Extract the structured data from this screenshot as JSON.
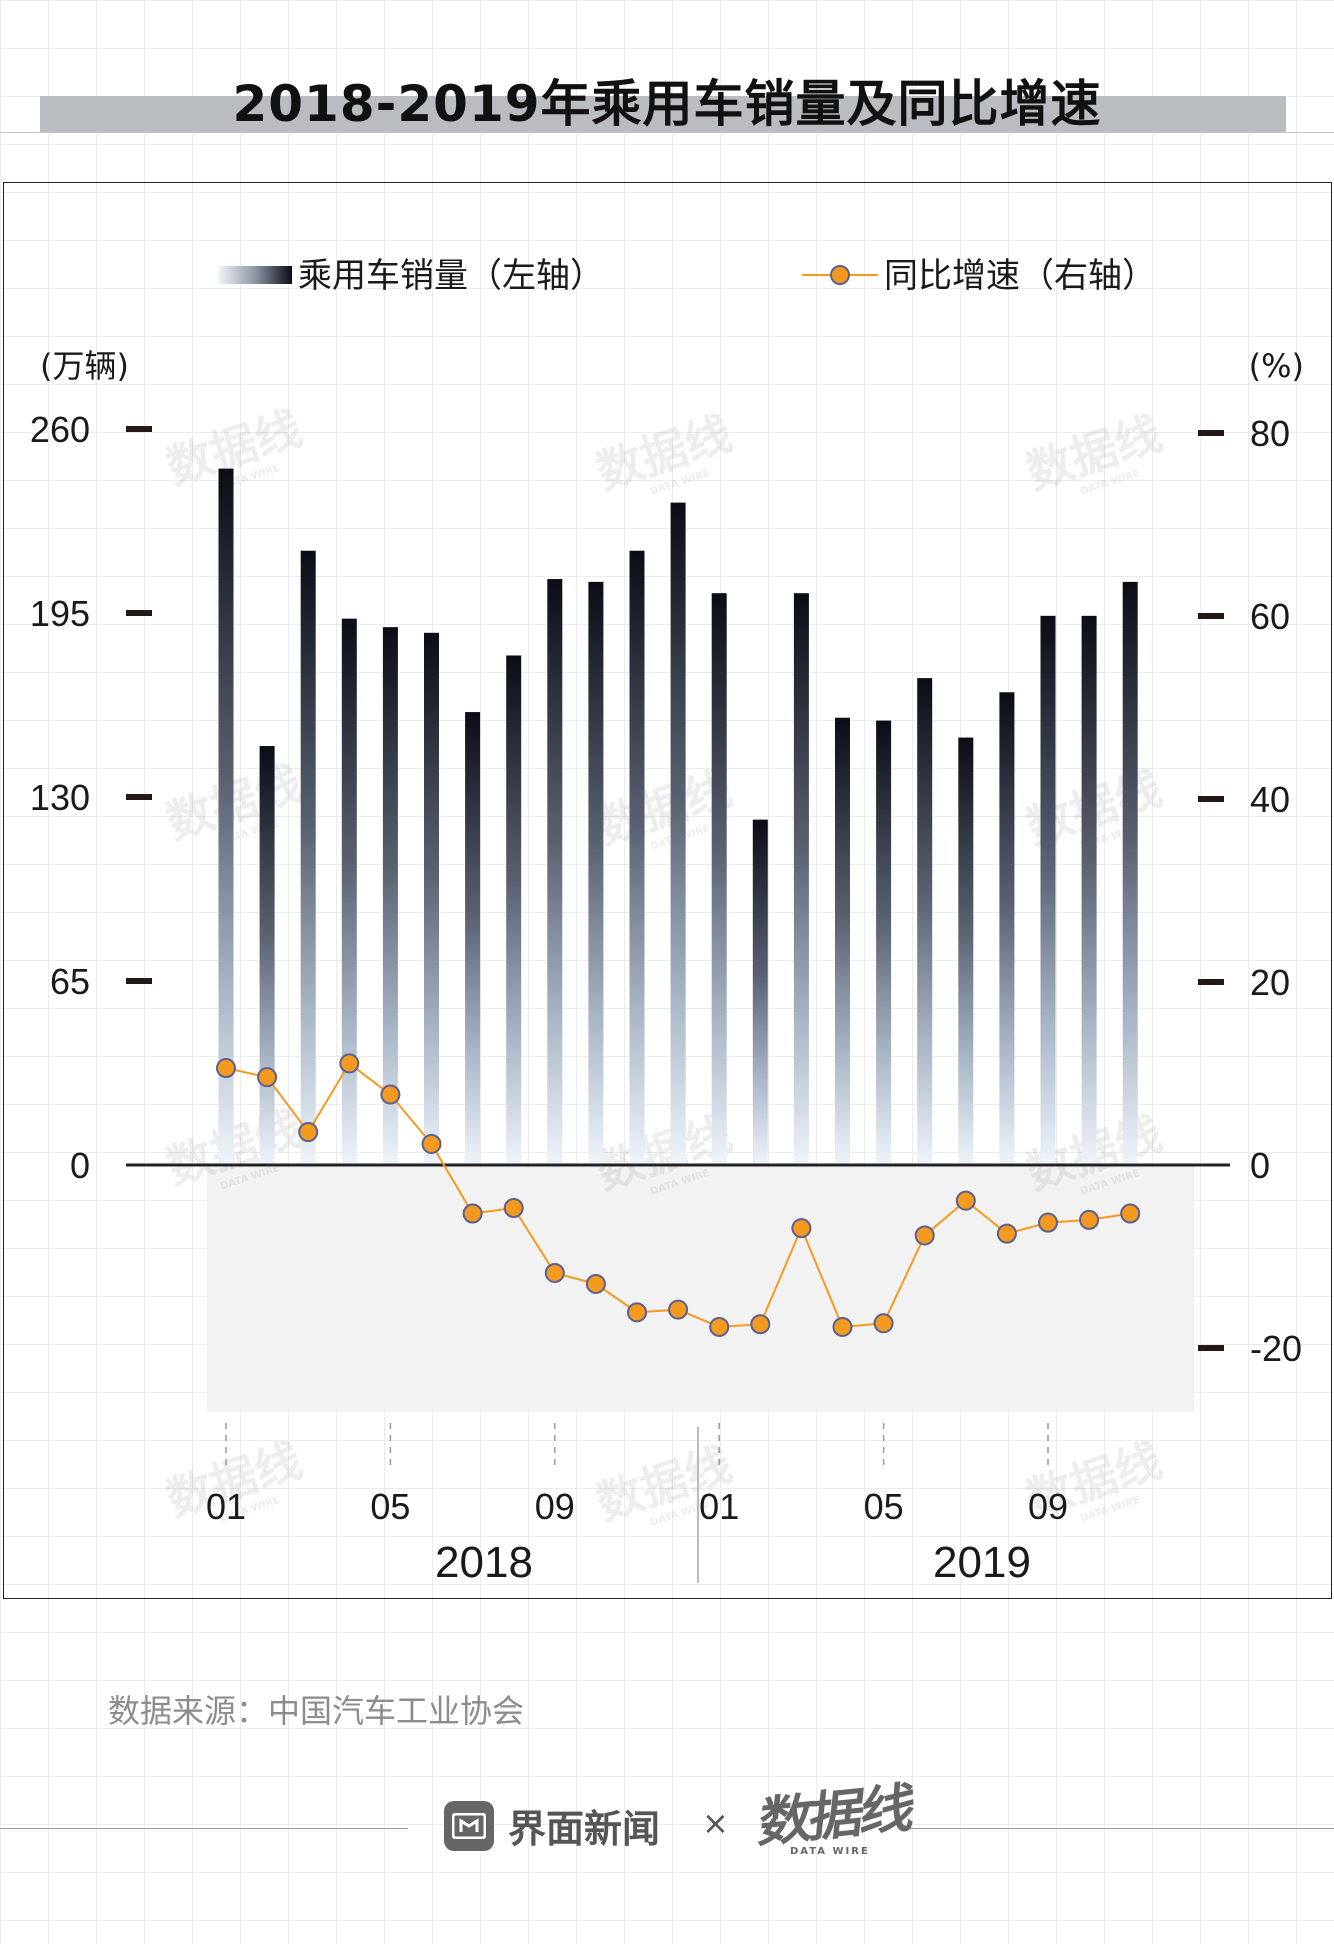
{
  "title": "2018-2019年乘用车销量及同比增速",
  "source": "数据来源：中国汽车工业协会",
  "footer": {
    "brand": "界面新闻",
    "times": "×",
    "partner": "数据线",
    "partner_sub": "DATA WIRE"
  },
  "watermark": {
    "text": "数据线",
    "sub": "DATA WIRE"
  },
  "chart_data": {
    "type": "bar+line",
    "title": "2018-2019年乘用车销量及同比增速",
    "legend": [
      {
        "name": "乘用车销量（左轴）",
        "kind": "bar"
      },
      {
        "name": "同比增速（右轴）",
        "kind": "line"
      }
    ],
    "y_left": {
      "unit_label": "(万辆)",
      "ticks": [
        "260",
        "195",
        "130",
        "65",
        "0"
      ],
      "tick_values": [
        260,
        195,
        130,
        65,
        0
      ],
      "range": [
        0,
        260
      ]
    },
    "y_right": {
      "unit_label": "(%)",
      "ticks": [
        "80",
        "60",
        "40",
        "20",
        "0",
        "-20"
      ],
      "tick_values": [
        80,
        60,
        40,
        20,
        0,
        -20
      ],
      "range": [
        -20,
        80
      ]
    },
    "x_ticks": [
      {
        "label": "01",
        "index": 0
      },
      {
        "label": "05",
        "index": 4
      },
      {
        "label": "09",
        "index": 8
      },
      {
        "label": "01",
        "index": 12
      },
      {
        "label": "05",
        "index": 16
      },
      {
        "label": "09",
        "index": 20
      }
    ],
    "years": [
      {
        "label": "2018",
        "start": 0,
        "end": 11
      },
      {
        "label": "2019",
        "start": 12,
        "end": 22
      }
    ],
    "months": [
      "2018-01",
      "2018-02",
      "2018-03",
      "2018-04",
      "2018-05",
      "2018-06",
      "2018-07",
      "2018-08",
      "2018-09",
      "2018-10",
      "2018-11",
      "2018-12",
      "2019-01",
      "2019-02",
      "2019-03",
      "2019-04",
      "2019-05",
      "2019-06",
      "2019-07",
      "2019-08",
      "2019-09",
      "2019-10",
      "2019-11"
    ],
    "series": [
      {
        "name": "乘用车销量",
        "axis": "left",
        "unit": "万辆",
        "values": [
          246,
          148,
          217,
          193,
          190,
          188,
          160,
          180,
          207,
          206,
          217,
          234,
          202,
          122,
          202,
          158,
          157,
          172,
          151,
          167,
          194,
          194,
          206
        ]
      },
      {
        "name": "同比增速",
        "axis": "right",
        "unit": "%",
        "values": [
          10.6,
          9.6,
          3.6,
          11.1,
          7.7,
          2.3,
          -5.3,
          -4.7,
          -11.8,
          -13.0,
          -16.1,
          -15.8,
          -17.7,
          -17.4,
          -6.9,
          -17.7,
          -17.3,
          -7.7,
          -3.9,
          -7.5,
          -6.3,
          -6.0,
          -5.3
        ]
      }
    ]
  }
}
